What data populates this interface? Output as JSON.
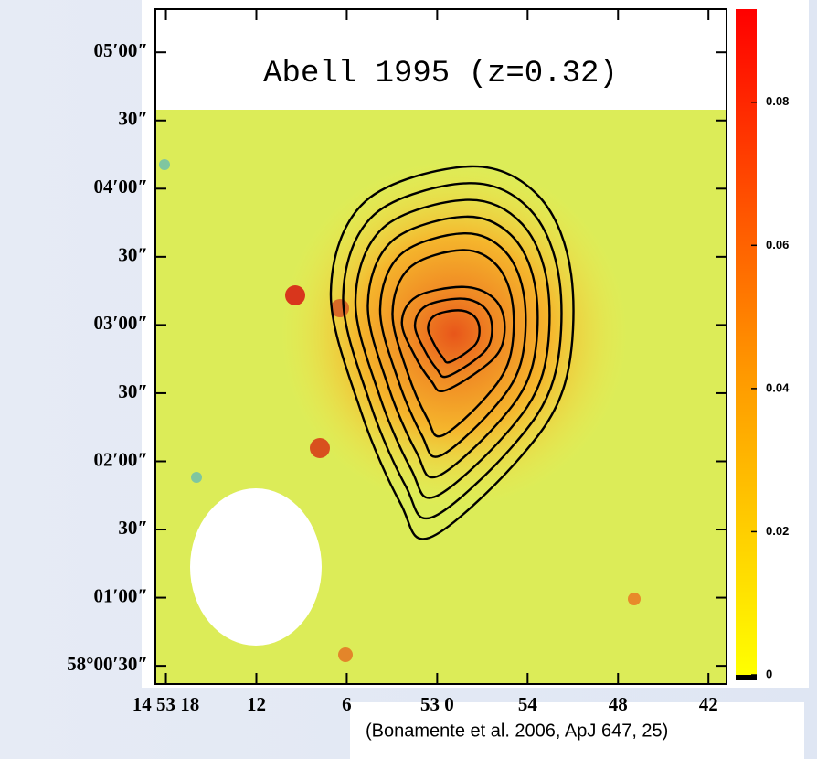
{
  "chart_data": {
    "type": "image",
    "title": "Abell 1995 (z=0.32)",
    "xlim": [
      18.7,
      -19.2
    ],
    "xticks": [
      {
        "value": 18,
        "label": "14 53 18"
      },
      {
        "value": 12,
        "label": "12"
      },
      {
        "value": 6,
        "label": "6"
      },
      {
        "value": 0,
        "label": "53 0"
      },
      {
        "value": -6,
        "label": "54"
      },
      {
        "value": -12,
        "label": "48"
      },
      {
        "value": -18,
        "label": "42"
      }
    ],
    "ylim": [
      22,
      319
    ],
    "yticks": [
      {
        "value": 300,
        "label": "05′00″"
      },
      {
        "value": 270,
        "label": "30″"
      },
      {
        "value": 240,
        "label": "04′00″"
      },
      {
        "value": 210,
        "label": "30″"
      },
      {
        "value": 180,
        "label": "03′00″"
      },
      {
        "value": 150,
        "label": "30″"
      },
      {
        "value": 120,
        "label": "02′00″"
      },
      {
        "value": 90,
        "label": "30″"
      },
      {
        "value": 60,
        "label": "01′00″"
      },
      {
        "value": 30,
        "label": "58°00′30″"
      }
    ],
    "colorbar_lim": [
      0,
      0.093
    ],
    "colorbar_ticks": [
      0,
      0.02,
      0.04,
      0.06,
      0.08
    ],
    "caption": "(Bonamente et al. 2006, ApJ 647, 25)"
  }
}
